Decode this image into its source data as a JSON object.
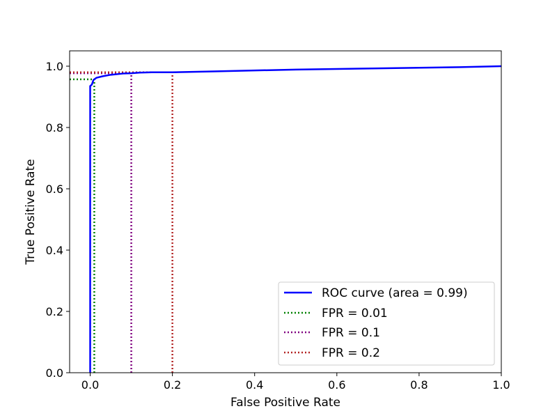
{
  "chart_data": {
    "type": "line",
    "title": "",
    "xlabel": "False Positive Rate",
    "ylabel": "True Positive Rate",
    "xlim": [
      -0.05,
      1.0
    ],
    "ylim": [
      0.0,
      1.05
    ],
    "x_ticks": [
      "0.0",
      "0.2",
      "0.4",
      "0.6",
      "0.8",
      "1.0"
    ],
    "y_ticks": [
      "0.0",
      "0.2",
      "0.4",
      "0.6",
      "0.8",
      "1.0"
    ],
    "grid": false,
    "legend_position": "lower right",
    "series": [
      {
        "name": "ROC curve (area = 0.99)",
        "color": "#0000ff",
        "style": "solid",
        "points": [
          [
            0.0,
            0.0
          ],
          [
            0.0,
            0.935
          ],
          [
            0.004,
            0.94
          ],
          [
            0.008,
            0.955
          ],
          [
            0.015,
            0.962
          ],
          [
            0.03,
            0.967
          ],
          [
            0.05,
            0.972
          ],
          [
            0.08,
            0.976
          ],
          [
            0.1,
            0.977
          ],
          [
            0.12,
            0.979
          ],
          [
            0.15,
            0.98
          ],
          [
            0.2,
            0.98
          ],
          [
            0.3,
            0.983
          ],
          [
            0.4,
            0.986
          ],
          [
            0.5,
            0.989
          ],
          [
            0.6,
            0.991
          ],
          [
            0.7,
            0.993
          ],
          [
            0.8,
            0.995
          ],
          [
            0.9,
            0.997
          ],
          [
            1.0,
            1.0
          ]
        ]
      },
      {
        "name": "FPR = 0.01",
        "color": "#008000",
        "style": "dotted",
        "fpr": 0.01,
        "tpr": 0.957
      },
      {
        "name": "FPR = 0.1",
        "color": "#800080",
        "style": "dotted",
        "fpr": 0.1,
        "tpr": 0.977
      },
      {
        "name": "FPR = 0.2",
        "color": "#b22222",
        "style": "dotted",
        "fpr": 0.2,
        "tpr": 0.98
      }
    ]
  }
}
